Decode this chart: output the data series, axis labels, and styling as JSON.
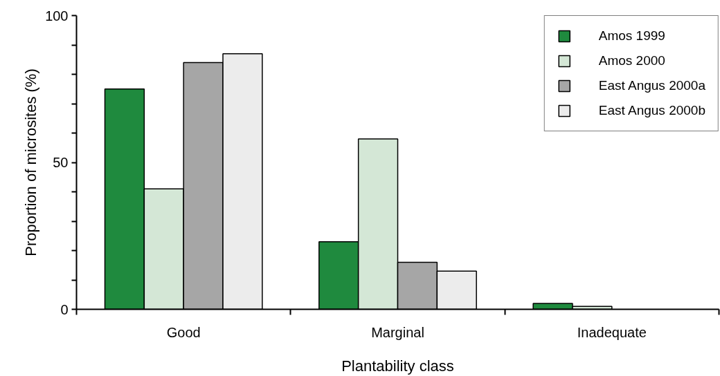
{
  "chart_data": {
    "type": "bar",
    "xlabel": "Plantability class",
    "ylabel": "Proportion of microsites (%)",
    "categories": [
      "Good",
      "Marginal",
      "Inadequate"
    ],
    "series": [
      {
        "name": "Amos 1999",
        "color": "#1f8a3e",
        "values": [
          75,
          23,
          2
        ]
      },
      {
        "name": "Amos 2000",
        "color": "#d4e7d6",
        "values": [
          41,
          58,
          1
        ]
      },
      {
        "name": "East Angus 2000a",
        "color": "#a6a6a6",
        "values": [
          84,
          16,
          null
        ]
      },
      {
        "name": "East Angus 2000b",
        "color": "#ececec",
        "values": [
          87,
          13,
          null
        ]
      }
    ],
    "ylim": [
      0,
      100
    ],
    "yticks": [
      0,
      {
        "value": 10,
        "label": null
      },
      {
        "value": 20,
        "label": null
      },
      {
        "value": 30,
        "label": null
      },
      {
        "value": 40,
        "label": null
      },
      50,
      {
        "value": 60,
        "label": null
      },
      {
        "value": 70,
        "label": null
      },
      {
        "value": 80,
        "label": null
      },
      {
        "value": 90,
        "label": null
      },
      100
    ],
    "grid": false,
    "legend": "top right"
  }
}
